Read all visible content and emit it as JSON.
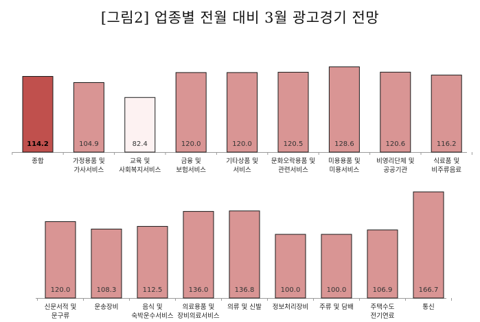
{
  "title": "[그림2] 업종별 전월 대비 3월 광고경기 전망",
  "colors": {
    "highlight": "#c0504d",
    "normal": "#d99594",
    "low": "#fdf2f2",
    "stroke": "#1a1a1a"
  },
  "chart_data": [
    {
      "type": "bar",
      "categories": [
        [
          "종합"
        ],
        [
          "가정용품 및",
          "가사서비스"
        ],
        [
          "교육 및",
          "사회복지서비스"
        ],
        [
          "금융 및",
          "보험서비스"
        ],
        [
          "기타상품 및",
          "서비스"
        ],
        [
          "문화오락용품 및",
          "관련서비스"
        ],
        [
          "미용용품 및",
          "미용서비스"
        ],
        [
          "비영리단체 및",
          "공공기관"
        ],
        [
          "식료품 및",
          "비주류음료"
        ]
      ],
      "values": [
        114.2,
        104.9,
        82.4,
        120.0,
        120.0,
        120.5,
        128.6,
        120.6,
        116.2
      ],
      "labels": [
        "114.2",
        "104.9",
        "82.4",
        "120.0",
        "120.0",
        "120.5",
        "128.6",
        "120.6",
        "116.2"
      ],
      "highlight_index": 0,
      "low_indices": [
        2
      ]
    },
    {
      "type": "bar",
      "categories": [
        [
          "신문서적 및",
          "문구류"
        ],
        [
          "운송장비"
        ],
        [
          "음식 및",
          "숙박운수서비스"
        ],
        [
          "의료용품 및",
          "장비의료서비스"
        ],
        [
          "의류 및 신발"
        ],
        [
          "정보처리장비"
        ],
        [
          "주류 및 담배"
        ],
        [
          "주택수도",
          "전기연료"
        ],
        [
          "통신"
        ]
      ],
      "values": [
        120.0,
        108.3,
        112.5,
        136.0,
        136.8,
        100.0,
        100.0,
        106.9,
        166.7
      ],
      "labels": [
        "120.0",
        "108.3",
        "112.5",
        "136.0",
        "136.8",
        "100.0",
        "100.0",
        "106.9",
        "166.7"
      ],
      "highlight_index": -1,
      "low_indices": []
    }
  ]
}
